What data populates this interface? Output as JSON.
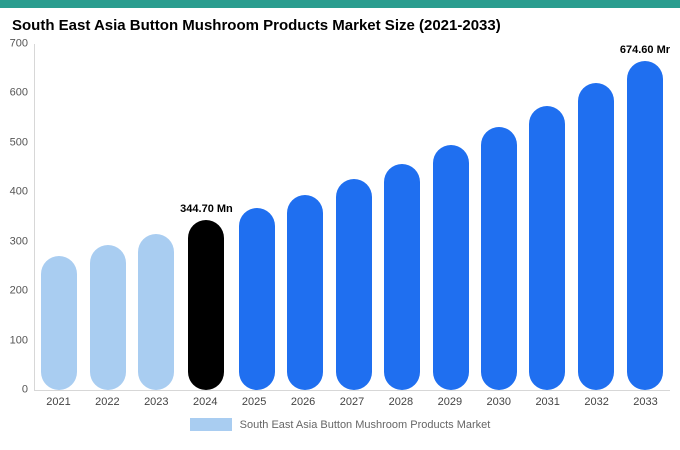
{
  "header": {
    "title": "South East Asia Button Mushroom Products Market Size (2021-2033)"
  },
  "colors": {
    "topbar": "#2a9d8f",
    "light_bar": "#a9cdf1",
    "primary_bar": "#1f6ff0",
    "accent_bar": "#000000",
    "axis_line": "#d7d7d7"
  },
  "legend": {
    "label": "South East Asia Button Mushroom Products Market",
    "swatch_color": "#a9cdf1"
  },
  "chart_data": {
    "type": "bar",
    "title": "South East Asia Button Mushroom Products Market Size (2021-2033)",
    "unit": "Mn",
    "ylim": [
      0,
      700
    ],
    "yticks": [
      0,
      100,
      200,
      300,
      400,
      500,
      600,
      700
    ],
    "grid": false,
    "legend_position": "bottom",
    "categories": [
      "2021",
      "2022",
      "2023",
      "2024",
      "2025",
      "2026",
      "2027",
      "2028",
      "2029",
      "2030",
      "2031",
      "2032",
      "2033"
    ],
    "values": [
      271,
      293,
      316,
      344.7,
      368,
      394,
      426,
      458,
      495,
      533,
      575,
      622,
      674.6
    ],
    "bar_colors": [
      "light",
      "light",
      "light",
      "accent",
      "primary",
      "primary",
      "primary",
      "primary",
      "primary",
      "primary",
      "primary",
      "primary",
      "primary"
    ],
    "annotations": [
      {
        "category": "2024",
        "text": "344.70 Mn"
      },
      {
        "category": "2033",
        "text": "674.60 Mr"
      }
    ]
  }
}
